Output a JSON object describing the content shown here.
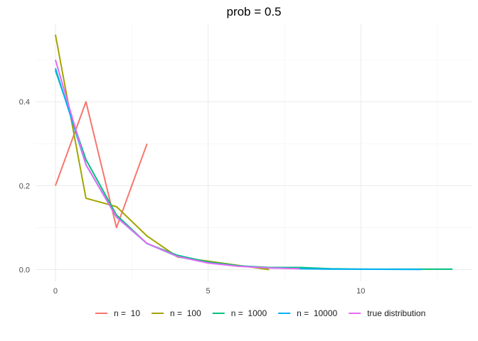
{
  "chart_data": {
    "type": "line",
    "title": "prob = 0.5",
    "xlabel": "",
    "ylabel": "",
    "xlim": [
      -0.65,
      13.65
    ],
    "ylim": [
      -0.028,
      0.585
    ],
    "x_ticks": [
      0,
      5,
      10
    ],
    "x_tick_labels": [
      "0",
      "5",
      "10"
    ],
    "x_minor_ticks": [
      2.5,
      7.5,
      12.5
    ],
    "y_ticks": [
      0.0,
      0.2,
      0.4
    ],
    "y_tick_labels": [
      "0.0",
      "0.2",
      "0.4"
    ],
    "y_minor_ticks": [
      0.1,
      0.3,
      0.5
    ],
    "grid": true,
    "legend_position": "bottom",
    "series": [
      {
        "name": "n =  10",
        "color": "#F8766D",
        "x": [
          0,
          1,
          2,
          3
        ],
        "y": [
          0.2,
          0.4,
          0.1,
          0.3
        ]
      },
      {
        "name": "n =  100",
        "color": "#A3A500",
        "x": [
          0,
          1,
          2,
          3,
          4,
          5,
          6,
          7
        ],
        "y": [
          0.56,
          0.17,
          0.15,
          0.08,
          0.03,
          0.02,
          0.01,
          0.0
        ]
      },
      {
        "name": "n =  1000",
        "color": "#00BF7D",
        "x": [
          0,
          1,
          2,
          3,
          4,
          5,
          6,
          7,
          8,
          9,
          10,
          11,
          12,
          13
        ],
        "y": [
          0.475,
          0.262,
          0.13,
          0.062,
          0.034,
          0.018,
          0.009,
          0.005,
          0.005,
          0.002,
          0.001,
          0.001,
          0.001,
          0.001
        ]
      },
      {
        "name": "n =  10000",
        "color": "#00B0F6",
        "x": [
          0,
          1,
          2,
          3,
          4,
          5,
          6,
          7,
          8,
          9,
          10,
          11,
          12
        ],
        "y": [
          0.48,
          0.25,
          0.125,
          0.062,
          0.031,
          0.016,
          0.008,
          0.004,
          0.002,
          0.001,
          0.001,
          0.0005,
          0.0003
        ]
      },
      {
        "name": "true distribution",
        "color": "#E76BF3",
        "x": [
          0,
          1,
          2,
          3,
          4,
          5,
          6,
          7,
          8
        ],
        "y": [
          0.5,
          0.25,
          0.125,
          0.0625,
          0.03125,
          0.015625,
          0.0078125,
          0.00390625,
          0.001953125
        ]
      }
    ]
  }
}
